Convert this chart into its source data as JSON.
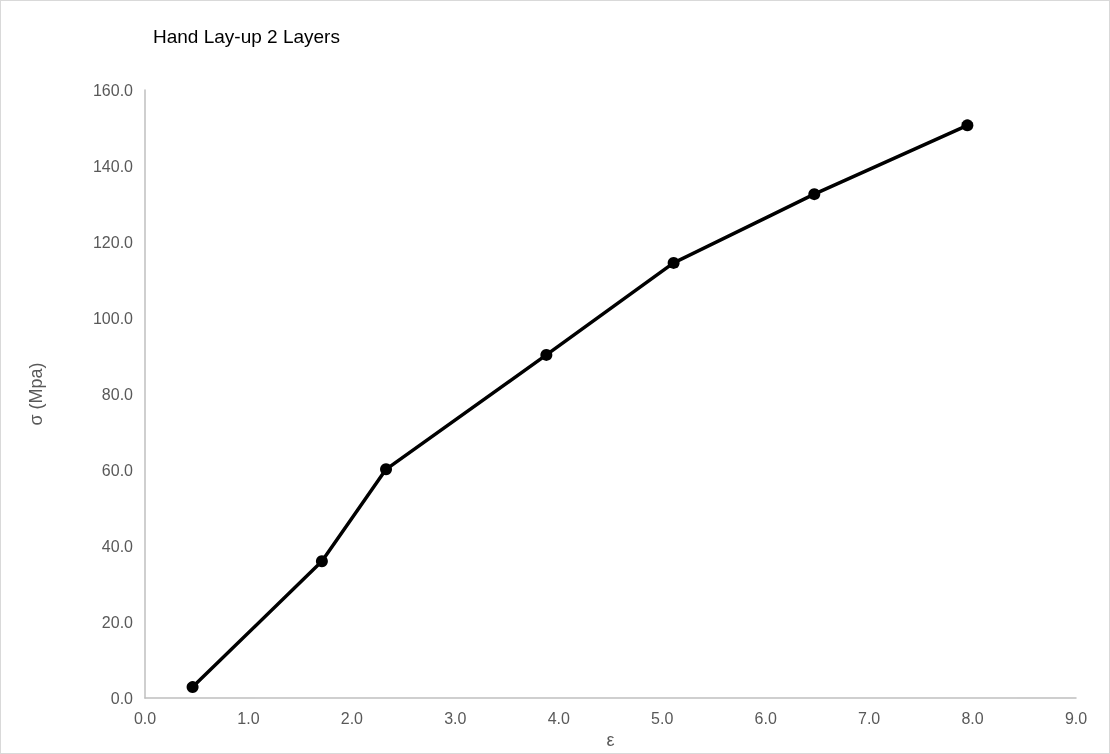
{
  "chart_data": {
    "type": "line",
    "title": "Hand Lay-up 2 Layers",
    "xlabel": "ε",
    "ylabel": "σ (Mpa)",
    "x": [
      0.46,
      1.71,
      2.33,
      3.88,
      5.11,
      6.47,
      7.95
    ],
    "series": [
      {
        "color": "#000000",
        "values": [
          2.9,
          36.0,
          60.2,
          90.3,
          114.5,
          132.6,
          150.7
        ]
      }
    ],
    "xlim": [
      0,
      9
    ],
    "xticks": [
      {
        "value": 0,
        "label": "0.0"
      },
      {
        "value": 1,
        "label": "1.0"
      },
      {
        "value": 2,
        "label": "2.0"
      },
      {
        "value": 3,
        "label": "3.0"
      },
      {
        "value": 4,
        "label": "4.0"
      },
      {
        "value": 5,
        "label": "5.0"
      },
      {
        "value": 6,
        "label": "6.0"
      },
      {
        "value": 7,
        "label": "7.0"
      },
      {
        "value": 8,
        "label": "8.0"
      },
      {
        "value": 9,
        "label": "9.0"
      }
    ],
    "ylim": [
      0,
      160
    ],
    "yticks": [
      {
        "value": 0,
        "label": "0.0"
      },
      {
        "value": 20,
        "label": "20.0"
      },
      {
        "value": 40,
        "label": "40.0"
      },
      {
        "value": 60,
        "label": "60.0"
      },
      {
        "value": 80,
        "label": "80.0"
      },
      {
        "value": 100,
        "label": "100.0"
      },
      {
        "value": 120,
        "label": "120.0"
      },
      {
        "value": 140,
        "label": "140.0"
      },
      {
        "value": 160,
        "label": "160.0"
      }
    ],
    "grid": false,
    "marker": "circle",
    "line_style": "solid"
  }
}
